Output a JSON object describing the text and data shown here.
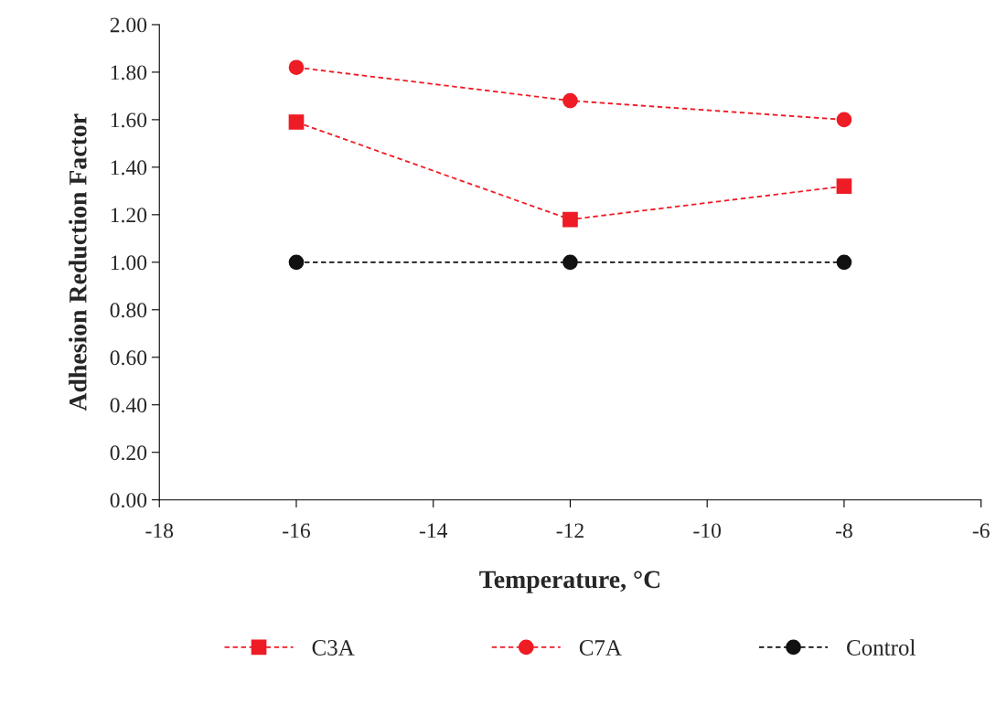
{
  "chart_data": {
    "type": "line",
    "xlabel": "Temperature, °C",
    "ylabel": "Adhesion Reduction Factor",
    "x": [
      -16,
      -12,
      -8
    ],
    "series": [
      {
        "name": "C3A",
        "color": "#ee1c25",
        "values": [
          1.59,
          1.18,
          1.32
        ],
        "marker": "square"
      },
      {
        "name": "C7A",
        "color": "#ee1c25",
        "values": [
          1.82,
          1.68,
          1.6
        ],
        "marker": "circle"
      },
      {
        "name": "Control",
        "color": "#111111",
        "values": [
          1.0,
          1.0,
          1.0
        ],
        "marker": "circle"
      }
    ],
    "line_style": "dashed",
    "xlim": [
      -18,
      -6
    ],
    "xticks": [
      -18,
      -16,
      -14,
      -12,
      -10,
      -8,
      -6
    ],
    "ylim": [
      0,
      2
    ],
    "yticks": [
      {
        "value": 0,
        "label": "0.00"
      },
      {
        "value": 0.2,
        "label": "0.20"
      },
      {
        "value": 0.4,
        "label": "0.40"
      },
      {
        "value": 0.6,
        "label": "0.60"
      },
      {
        "value": 0.8,
        "label": "0.80"
      },
      {
        "value": 1.0,
        "label": "1.00"
      },
      {
        "value": 1.2,
        "label": "1.20"
      },
      {
        "value": 1.4,
        "label": "1.40"
      },
      {
        "value": 1.6,
        "label": "1.60"
      },
      {
        "value": 1.8,
        "label": "1.80"
      },
      {
        "value": 2.0,
        "label": "2.00"
      }
    ],
    "grid": false,
    "legend": "bottom"
  }
}
